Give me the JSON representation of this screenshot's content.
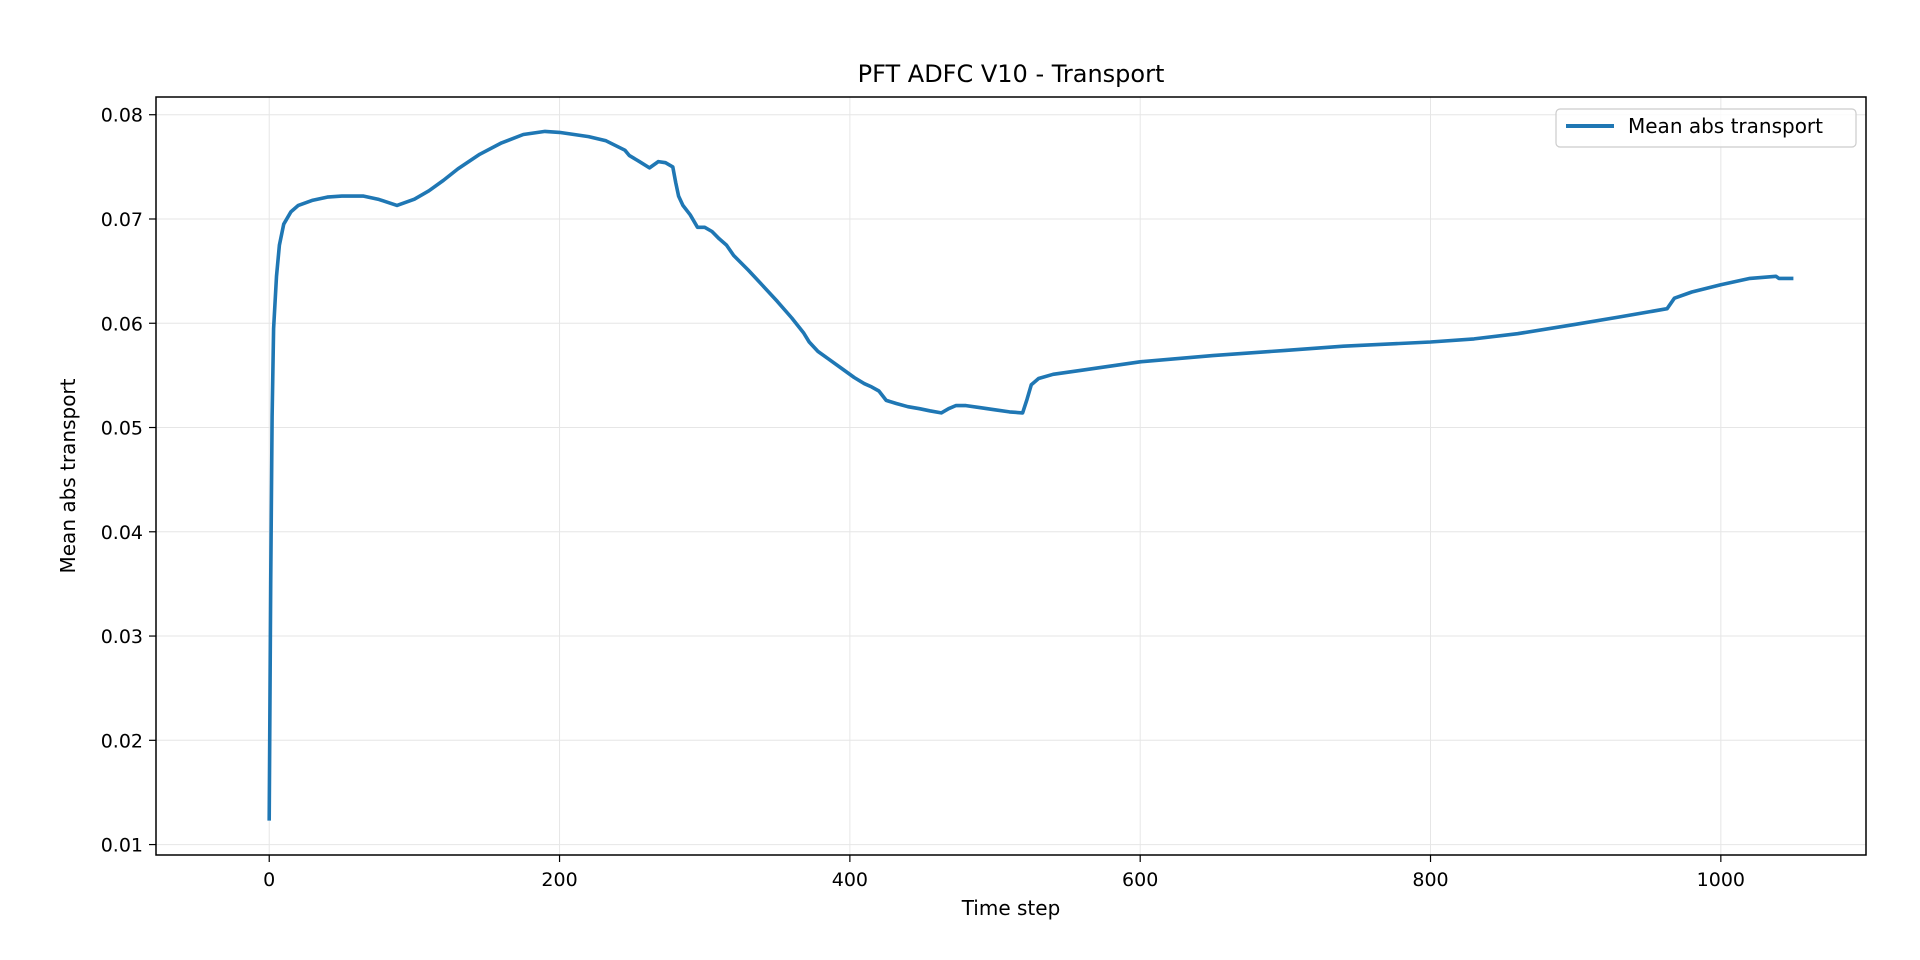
{
  "chart_data": {
    "type": "line",
    "title": "PFT ADFC V10 - Transport",
    "xlabel": "Time step",
    "ylabel": "Mean abs transport",
    "xlim": [
      -78,
      1100
    ],
    "ylim": [
      0.009,
      0.0817
    ],
    "x_ticks": [
      0,
      200,
      400,
      600,
      800,
      1000
    ],
    "x_tick_labels": [
      "0",
      "200",
      "400",
      "600",
      "800",
      "1000"
    ],
    "y_ticks": [
      0.01,
      0.02,
      0.03,
      0.04,
      0.05,
      0.06,
      0.07,
      0.08
    ],
    "y_tick_labels": [
      "0.01",
      "0.02",
      "0.03",
      "0.04",
      "0.05",
      "0.06",
      "0.07",
      "0.08"
    ],
    "grid": true,
    "legend_position": "top-right",
    "series": [
      {
        "name": "Mean abs transport",
        "color": "#1f77b4",
        "x": [
          0,
          1,
          2,
          3,
          5,
          7,
          10,
          15,
          20,
          30,
          40,
          50,
          65,
          75,
          88,
          100,
          110,
          120,
          130,
          145,
          160,
          175,
          190,
          200,
          210,
          220,
          232,
          245,
          248,
          255,
          262,
          268,
          273,
          278,
          280,
          282,
          285,
          290,
          295,
          300,
          305,
          310,
          315,
          320,
          330,
          340,
          350,
          360,
          368,
          372,
          378,
          385,
          395,
          403,
          410,
          415,
          420,
          425,
          432,
          440,
          448,
          455,
          463,
          468,
          473,
          480,
          490,
          500,
          510,
          519,
          522,
          525,
          530,
          540,
          560,
          600,
          650,
          700,
          740,
          800,
          830,
          860,
          900,
          930,
          963,
          968,
          980,
          1000,
          1020,
          1038,
          1040,
          1050
        ],
        "y": [
          0.0123,
          0.035,
          0.051,
          0.0595,
          0.0645,
          0.0675,
          0.0695,
          0.0707,
          0.0713,
          0.0718,
          0.0721,
          0.0722,
          0.0722,
          0.0719,
          0.0713,
          0.0719,
          0.0727,
          0.0737,
          0.0748,
          0.0762,
          0.0773,
          0.0781,
          0.0784,
          0.0783,
          0.0781,
          0.0779,
          0.0775,
          0.0766,
          0.0761,
          0.0755,
          0.0749,
          0.0755,
          0.0754,
          0.075,
          0.0735,
          0.0722,
          0.0713,
          0.0704,
          0.0692,
          0.0692,
          0.0688,
          0.0681,
          0.0675,
          0.0665,
          0.0651,
          0.0636,
          0.0621,
          0.0605,
          0.0591,
          0.0582,
          0.0573,
          0.0566,
          0.0556,
          0.0548,
          0.0542,
          0.0539,
          0.0535,
          0.0526,
          0.0523,
          0.052,
          0.0518,
          0.0516,
          0.0514,
          0.0518,
          0.0521,
          0.0521,
          0.0519,
          0.0517,
          0.0515,
          0.0514,
          0.0527,
          0.0541,
          0.0547,
          0.0551,
          0.0555,
          0.0563,
          0.0569,
          0.0574,
          0.0578,
          0.0582,
          0.0585,
          0.059,
          0.0599,
          0.0606,
          0.0614,
          0.0624,
          0.063,
          0.0637,
          0.0643,
          0.0645,
          0.0643,
          0.0643
        ]
      }
    ]
  }
}
